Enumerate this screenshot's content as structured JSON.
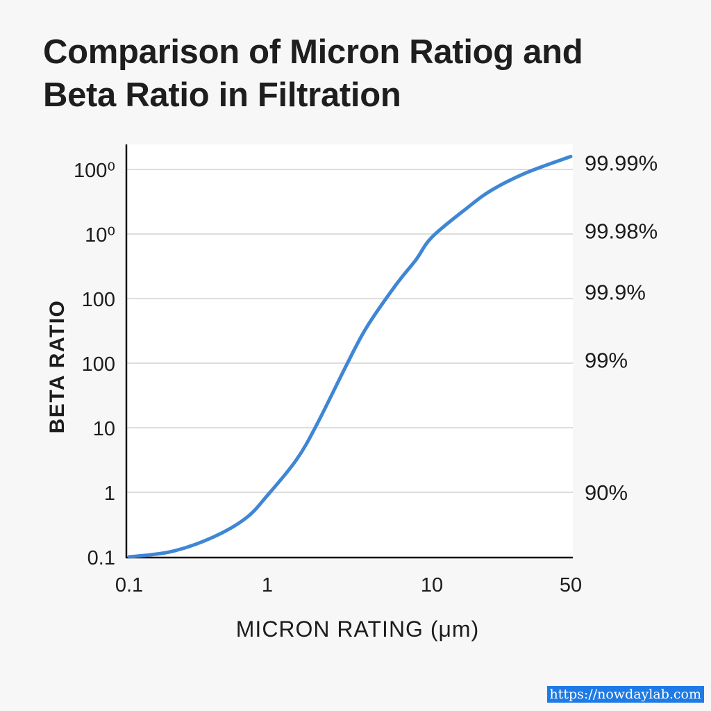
{
  "title_lines": [
    "Comparison of Micron Ratiog and",
    "Beta Ratio in Filtration"
  ],
  "watermark": "https://nowdaylab.com",
  "colors": {
    "line": "#3f86d4",
    "grid": "#dddddd",
    "axis": "#111111",
    "plot_bg": "#ffffff"
  },
  "chart_data": {
    "type": "line",
    "xlabel": "MICRON RATING (μm)",
    "ylabel": "BETA RATIO",
    "x_scale": "log",
    "x_ticks": [
      {
        "value": 0.1,
        "label": "0.1"
      },
      {
        "value": 1,
        "label": "1"
      },
      {
        "value": 10,
        "label": "10"
      },
      {
        "value": 50,
        "label": "50"
      }
    ],
    "y_ticks": [
      "0.1",
      "1",
      "10",
      "100",
      "100",
      "10⁰",
      "100⁰"
    ],
    "right_axis_labels": [
      {
        "label": "90%",
        "level": 1
      },
      {
        "label": "99%",
        "level": 3.05
      },
      {
        "label": "99.9%",
        "level": 4.1
      },
      {
        "label": "99.98%",
        "level": 5.05
      },
      {
        "label": "99.99%",
        "level": 6.1
      }
    ],
    "grid": true,
    "series": [
      {
        "x": [
          0.1,
          0.2,
          0.4,
          0.7,
          1,
          1.5,
          2,
          3,
          4,
          6,
          8,
          10,
          15,
          20,
          30,
          50
        ],
        "y_level": [
          0.0,
          0.08,
          0.3,
          0.6,
          0.95,
          1.5,
          2.05,
          2.95,
          3.55,
          4.2,
          4.6,
          4.95,
          5.4,
          5.68,
          5.95,
          6.2
        ]
      }
    ]
  }
}
